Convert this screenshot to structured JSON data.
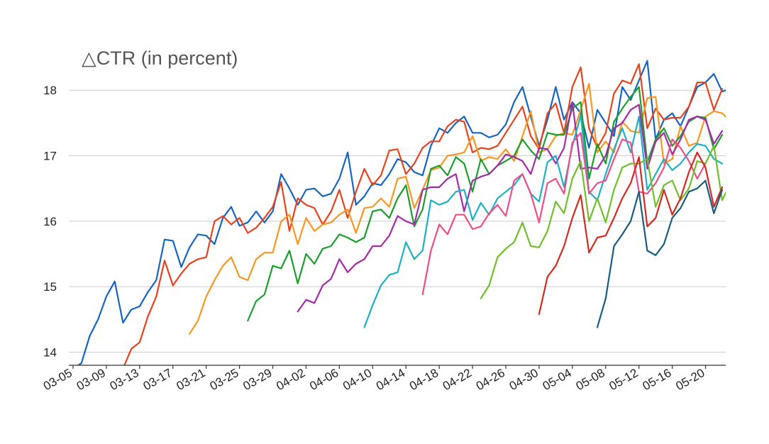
{
  "chart_data": {
    "type": "line",
    "title": "△CTR (in percent)",
    "xlabel": "",
    "ylabel": "",
    "ylim": [
      13.8,
      18.75
    ],
    "grid": true,
    "yticks": [
      14,
      15,
      16,
      17,
      18
    ],
    "x_tick_labels": [
      "03-05",
      "03-09",
      "03-13",
      "03-17",
      "03-21",
      "03-25",
      "03-29",
      "04-02",
      "04-06",
      "04-10",
      "04-14",
      "04-18",
      "04-22",
      "04-26",
      "04-30",
      "05-04",
      "05-08",
      "05-12",
      "05-16",
      "05-20"
    ],
    "x_start": "03-05",
    "x_end": "05-22",
    "series": [
      {
        "color": "#1565c0",
        "start": "03-05",
        "values": [
          13.75,
          13.83,
          14.25,
          14.5,
          14.85,
          15.08,
          14.45,
          14.65,
          14.7,
          14.92,
          15.1,
          15.72,
          15.7,
          15.3,
          15.6,
          15.8,
          15.78,
          15.65,
          16.05,
          16.22,
          15.93,
          15.98,
          16.15,
          15.98,
          16.15,
          16.72,
          16.5,
          16.25,
          16.48,
          16.5,
          16.38,
          16.42,
          16.65,
          17.05,
          16.25,
          16.38,
          16.58,
          16.55,
          16.72,
          16.95,
          16.9,
          16.75,
          16.7,
          17.15,
          17.42,
          17.35,
          17.5,
          17.6,
          17.35,
          17.35,
          17.28,
          17.32,
          17.48,
          17.82,
          18.05,
          17.6,
          17.15,
          17.55,
          18.05,
          17.55,
          17.82,
          17.65,
          17.12,
          17.7,
          17.5,
          17.3,
          18.05,
          17.85,
          18.15,
          18.45,
          17.25,
          17.55,
          17.65,
          17.45,
          17.75,
          18.05,
          18.12,
          18.25,
          17.98,
          18.03
        ]
      },
      {
        "color": "#e8411e",
        "start": "03-11",
        "values": [
          13.75,
          14.05,
          14.15,
          14.55,
          14.85,
          15.4,
          15.02,
          15.2,
          15.35,
          15.42,
          15.45,
          16.0,
          16.08,
          15.95,
          16.05,
          15.82,
          15.9,
          16.05,
          16.22,
          16.6,
          15.85,
          16.35,
          16.25,
          16.2,
          15.95,
          16.15,
          16.48,
          16.05,
          16.45,
          16.8,
          16.55,
          16.7,
          17.08,
          17.1,
          16.72,
          16.88,
          17.12,
          17.22,
          17.22,
          17.45,
          17.55,
          17.52,
          17.05,
          17.12,
          17.1,
          17.15,
          17.35,
          17.55,
          17.75,
          17.3,
          17.1,
          17.65,
          17.8,
          17.35,
          18.05,
          18.35,
          17.42,
          17.12,
          17.35,
          17.95,
          18.15,
          18.1,
          18.4,
          17.42,
          17.72,
          17.55,
          17.58,
          17.58,
          17.75,
          18.12,
          18.12,
          17.7,
          18.02
        ]
      },
      {
        "color": "#f8961e",
        "start": "03-19",
        "values": [
          14.28,
          14.48,
          14.85,
          15.1,
          15.32,
          15.45,
          15.15,
          15.1,
          15.42,
          15.52,
          15.52,
          16.0,
          16.1,
          15.65,
          16.05,
          15.85,
          15.95,
          15.98,
          16.1,
          16.18,
          15.82,
          16.2,
          16.22,
          16.35,
          16.22,
          16.65,
          16.68,
          16.2,
          16.48,
          16.78,
          16.82,
          17.0,
          17.02,
          17.05,
          17.3,
          16.92,
          16.98,
          16.95,
          17.1,
          16.92,
          17.3,
          17.68,
          17.05,
          17.1,
          17.3,
          17.35,
          17.32,
          17.7,
          18.1,
          17.05,
          17.22,
          17.05,
          17.52,
          17.38,
          17.35,
          17.88,
          17.9,
          16.88,
          16.95,
          17.45,
          17.15,
          17.2,
          17.6,
          17.68,
          17.65,
          17.52,
          17.62
        ]
      },
      {
        "color": "#1c9e2d",
        "start": "03-26",
        "values": [
          14.48,
          14.78,
          14.88,
          15.32,
          15.28,
          15.55,
          15.05,
          15.5,
          15.35,
          15.58,
          15.62,
          15.8,
          15.75,
          15.68,
          15.75,
          16.15,
          16.18,
          16.05,
          16.35,
          16.55,
          15.92,
          16.18,
          16.8,
          16.85,
          16.7,
          16.98,
          16.88,
          16.45,
          16.95,
          16.72,
          16.85,
          16.92,
          17.0,
          17.25,
          17.08,
          16.95,
          17.35,
          17.32,
          17.32,
          17.72,
          17.82,
          16.65,
          17.18,
          16.88,
          17.52,
          17.72,
          17.9,
          18.05,
          16.9,
          17.25,
          17.42,
          17.15,
          17.3,
          17.52,
          17.6,
          17.58,
          17.1,
          17.32
        ]
      },
      {
        "color": "#a32aa8",
        "start": "04-01",
        "values": [
          14.62,
          14.8,
          14.75,
          15.02,
          15.12,
          15.42,
          15.22,
          15.35,
          15.42,
          15.62,
          15.62,
          15.78,
          16.08,
          16.0,
          15.95,
          16.48,
          16.52,
          16.52,
          16.65,
          16.72,
          16.15,
          16.62,
          16.68,
          16.72,
          16.85,
          17.02,
          16.98,
          16.92,
          16.72,
          17.12,
          17.1,
          16.88,
          17.12,
          17.82,
          16.8,
          16.82,
          16.8,
          17.0,
          17.42,
          17.5,
          17.7,
          17.78,
          16.8,
          17.22,
          17.35,
          17.02,
          17.25,
          17.55,
          17.6,
          17.55,
          17.18,
          17.38
        ]
      },
      {
        "color": "#1cb0c8",
        "start": "04-09",
        "values": [
          14.38,
          14.72,
          15.02,
          15.18,
          15.22,
          15.68,
          15.42,
          15.55,
          16.32,
          16.25,
          16.3,
          16.45,
          16.48,
          16.02,
          16.28,
          16.1,
          16.35,
          16.45,
          16.55,
          16.72,
          16.42,
          16.3,
          16.9,
          17.0,
          16.52,
          17.15,
          17.62,
          16.45,
          16.32,
          16.72,
          17.1,
          17.42,
          17.05,
          17.6,
          16.48,
          16.72,
          16.95,
          16.78,
          16.88,
          17.05,
          17.18,
          17.15,
          16.95,
          16.88
        ]
      },
      {
        "color": "#ee4d86",
        "start": "04-16",
        "values": [
          14.88,
          15.55,
          15.95,
          15.8,
          16.1,
          16.1,
          15.88,
          15.92,
          16.12,
          16.25,
          16.08,
          16.62,
          16.72,
          16.42,
          15.98,
          16.58,
          16.65,
          16.42,
          17.2,
          17.35,
          16.42,
          16.58,
          16.62,
          16.95,
          17.25,
          17.2,
          16.45,
          16.42,
          16.58,
          16.82,
          17.25,
          17.12,
          16.92,
          16.65,
          16.88
        ]
      },
      {
        "color": "#6fbf2a",
        "start": "04-23",
        "values": [
          14.82,
          15.02,
          15.45,
          15.58,
          15.68,
          15.98,
          15.62,
          15.6,
          15.85,
          16.3,
          16.12,
          16.65,
          16.92,
          16.0,
          16.35,
          15.98,
          16.48,
          16.82,
          16.88,
          16.88,
          16.95,
          16.22,
          16.55,
          16.62,
          16.32,
          16.5,
          16.92,
          16.88,
          17.15,
          16.32,
          16.58
        ]
      },
      {
        "color": "#d4291e",
        "start": "04-30",
        "values": [
          14.58,
          15.15,
          15.32,
          15.62,
          16.05,
          16.4,
          15.52,
          15.75,
          15.78,
          16.05,
          16.35,
          16.58,
          16.98,
          15.92,
          16.05,
          16.48,
          16.1,
          16.35,
          16.75,
          17.05,
          16.82,
          16.22,
          16.52
        ]
      },
      {
        "color": "#165d80",
        "start": "05-07",
        "values": [
          14.38,
          14.82,
          15.62,
          15.8,
          16.0,
          16.45,
          15.55,
          15.48,
          15.65,
          16.05,
          16.2,
          16.45,
          16.5,
          16.62,
          16.12,
          16.48
        ]
      }
    ]
  }
}
